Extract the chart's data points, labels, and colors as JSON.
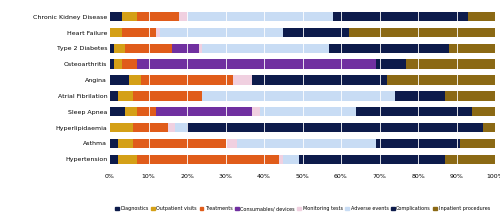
{
  "categories": [
    "Chronic Kidney Disease",
    "Heart Failure",
    "Type 2 Diabetes",
    "Osteoarthritis",
    "Angina",
    "Atrial Fibrilation",
    "Sleep Apnea",
    "Hyperlipidaemia",
    "Asthma",
    "Hypertension"
  ],
  "segments": {
    "Diagnostics": [
      3,
      0,
      1,
      1,
      5,
      2,
      4,
      0,
      2,
      2
    ],
    "Outpatient visits": [
      4,
      3,
      3,
      2,
      3,
      4,
      3,
      6,
      4,
      5
    ],
    "Treatments": [
      11,
      9,
      12,
      4,
      24,
      18,
      5,
      9,
      24,
      37
    ],
    "Consumables/ devices": [
      0,
      0,
      7,
      62,
      0,
      0,
      25,
      0,
      0,
      0
    ],
    "Monitoring tests": [
      2,
      1,
      1,
      0,
      5,
      0,
      2,
      2,
      3,
      1
    ],
    "Adverse events": [
      38,
      32,
      33,
      0,
      0,
      50,
      25,
      3,
      36,
      4
    ],
    "Complications": [
      35,
      17,
      31,
      8,
      35,
      13,
      30,
      77,
      22,
      38
    ],
    "Inpatient procedures": [
      7,
      38,
      12,
      23,
      28,
      13,
      6,
      3,
      9,
      13
    ]
  },
  "colors": {
    "Diagnostics": "#0d1b4b",
    "Outpatient visits": "#d4a017",
    "Treatments": "#e05c1a",
    "Consumables/ devices": "#7030a0",
    "Monitoring tests": "#f0d0e0",
    "Adverse events": "#c8dcf4",
    "Complications": "#0d1b4b",
    "Inpatient procedures": "#8b6914"
  },
  "figsize": [
    5.0,
    2.2
  ],
  "dpi": 100
}
